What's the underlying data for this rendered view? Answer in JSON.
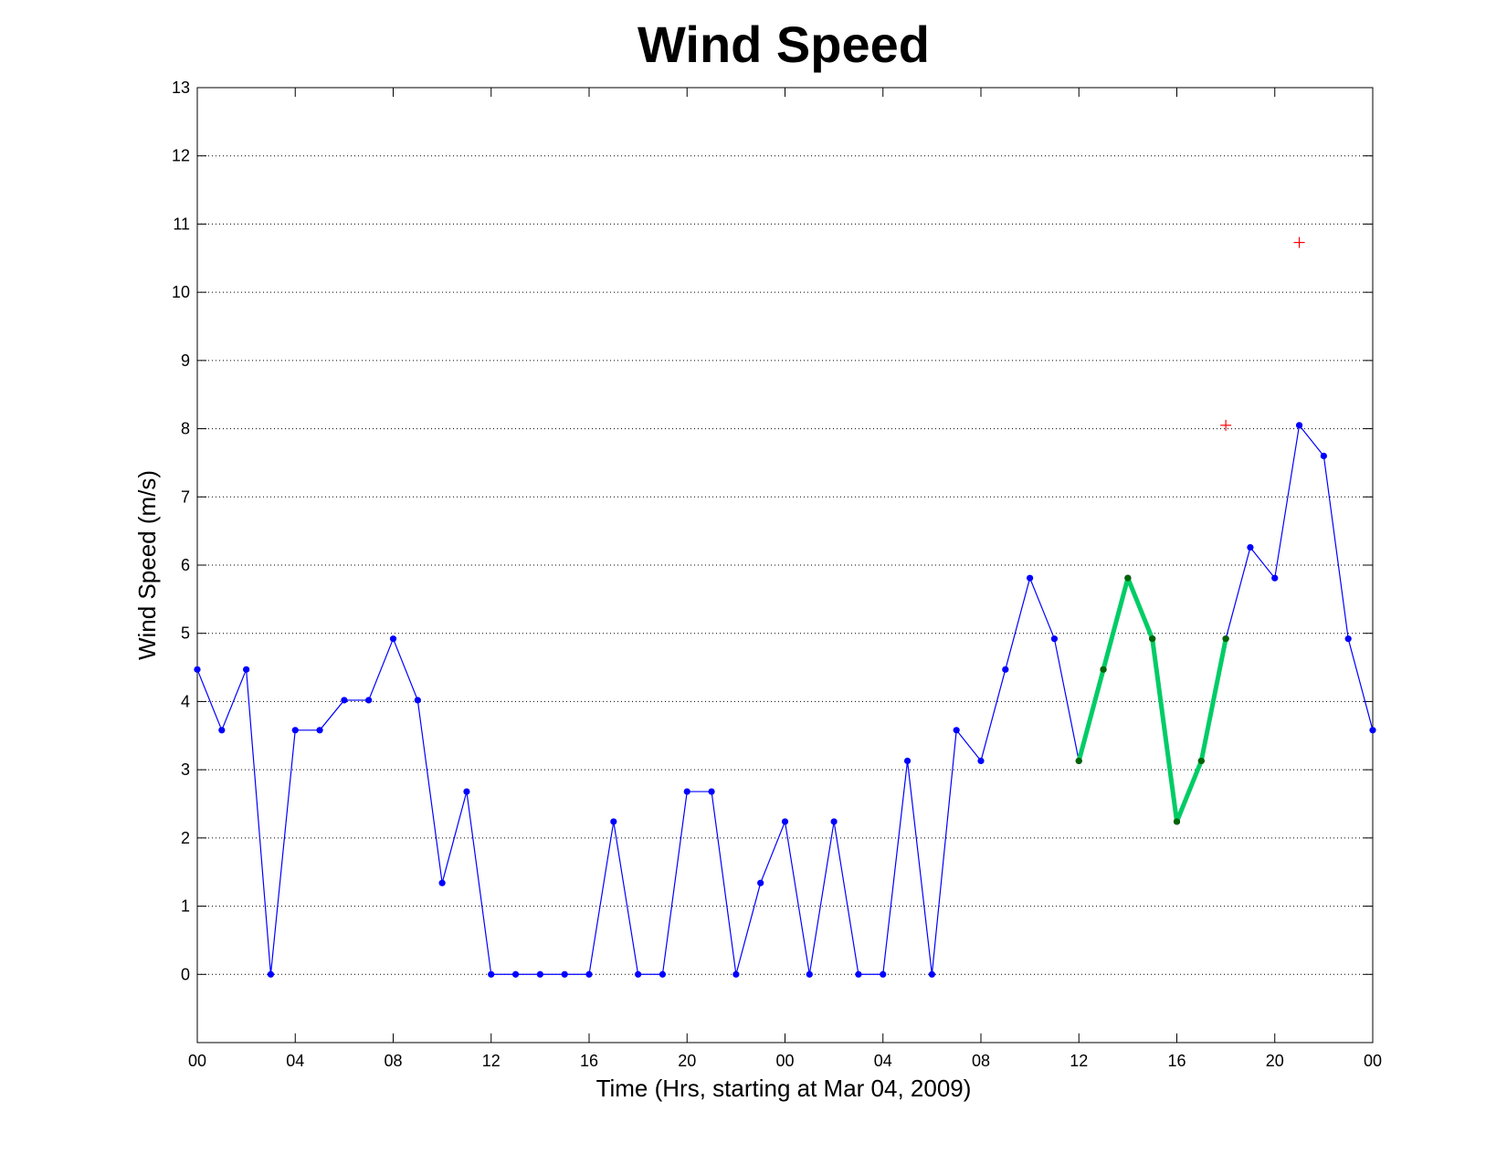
{
  "chart_data": {
    "type": "line",
    "title": "Wind Speed",
    "xlabel": "Time (Hrs, starting at Mar 04, 2009)",
    "ylabel": "Wind Speed (m/s)",
    "ylim": [
      -1,
      13
    ],
    "xlim": [
      0,
      48
    ],
    "x_ticks": [
      0,
      4,
      8,
      12,
      16,
      20,
      24,
      28,
      32,
      36,
      40,
      44,
      48
    ],
    "x_tick_labels": [
      "00",
      "04",
      "08",
      "12",
      "16",
      "20",
      "00",
      "04",
      "08",
      "12",
      "16",
      "20",
      "00"
    ],
    "y_ticks": [
      0,
      1,
      2,
      3,
      4,
      5,
      6,
      7,
      8,
      9,
      10,
      11,
      12,
      13
    ],
    "y_tick_labels": [
      "0",
      "1",
      "2",
      "3",
      "4",
      "5",
      "6",
      "7",
      "8",
      "9",
      "10",
      "11",
      "12",
      "13"
    ],
    "grid": "horizontal dotted",
    "series": [
      {
        "style": "line-dot",
        "color": "#0000ff",
        "x": [
          0,
          1,
          2,
          3,
          4,
          5,
          6,
          7,
          8,
          9,
          10,
          11,
          12,
          13,
          14,
          15,
          16,
          17,
          18,
          19,
          20,
          21,
          22,
          23,
          24,
          25,
          26,
          27,
          28,
          29,
          30,
          31,
          32,
          33,
          34,
          35,
          36,
          37,
          38,
          39,
          40,
          41,
          42,
          43,
          44,
          45,
          46,
          47,
          48
        ],
        "values": [
          4.47,
          3.58,
          4.47,
          0,
          3.58,
          3.58,
          4.02,
          4.02,
          4.92,
          4.02,
          1.34,
          2.68,
          0,
          0,
          0,
          0,
          0,
          2.24,
          0,
          0,
          2.68,
          2.68,
          0,
          1.34,
          2.24,
          0,
          2.24,
          0,
          0,
          3.13,
          0,
          3.58,
          3.13,
          4.47,
          5.81,
          4.92,
          3.13,
          4.47,
          5.81,
          4.92,
          2.24,
          3.13,
          4.92,
          6.26,
          5.81,
          8.05,
          7.6,
          4.92,
          3.58
        ]
      },
      {
        "style": "thick-line-dot",
        "color": "#00cc66",
        "marker_color": "#006400",
        "x": [
          36,
          37,
          38,
          39,
          40,
          41,
          42
        ],
        "values": [
          3.13,
          4.47,
          5.81,
          4.92,
          2.24,
          3.13,
          4.92
        ]
      },
      {
        "style": "plus-marker",
        "color": "#ff0000",
        "x": [
          42,
          45
        ],
        "values": [
          8.05,
          10.73
        ]
      }
    ]
  }
}
